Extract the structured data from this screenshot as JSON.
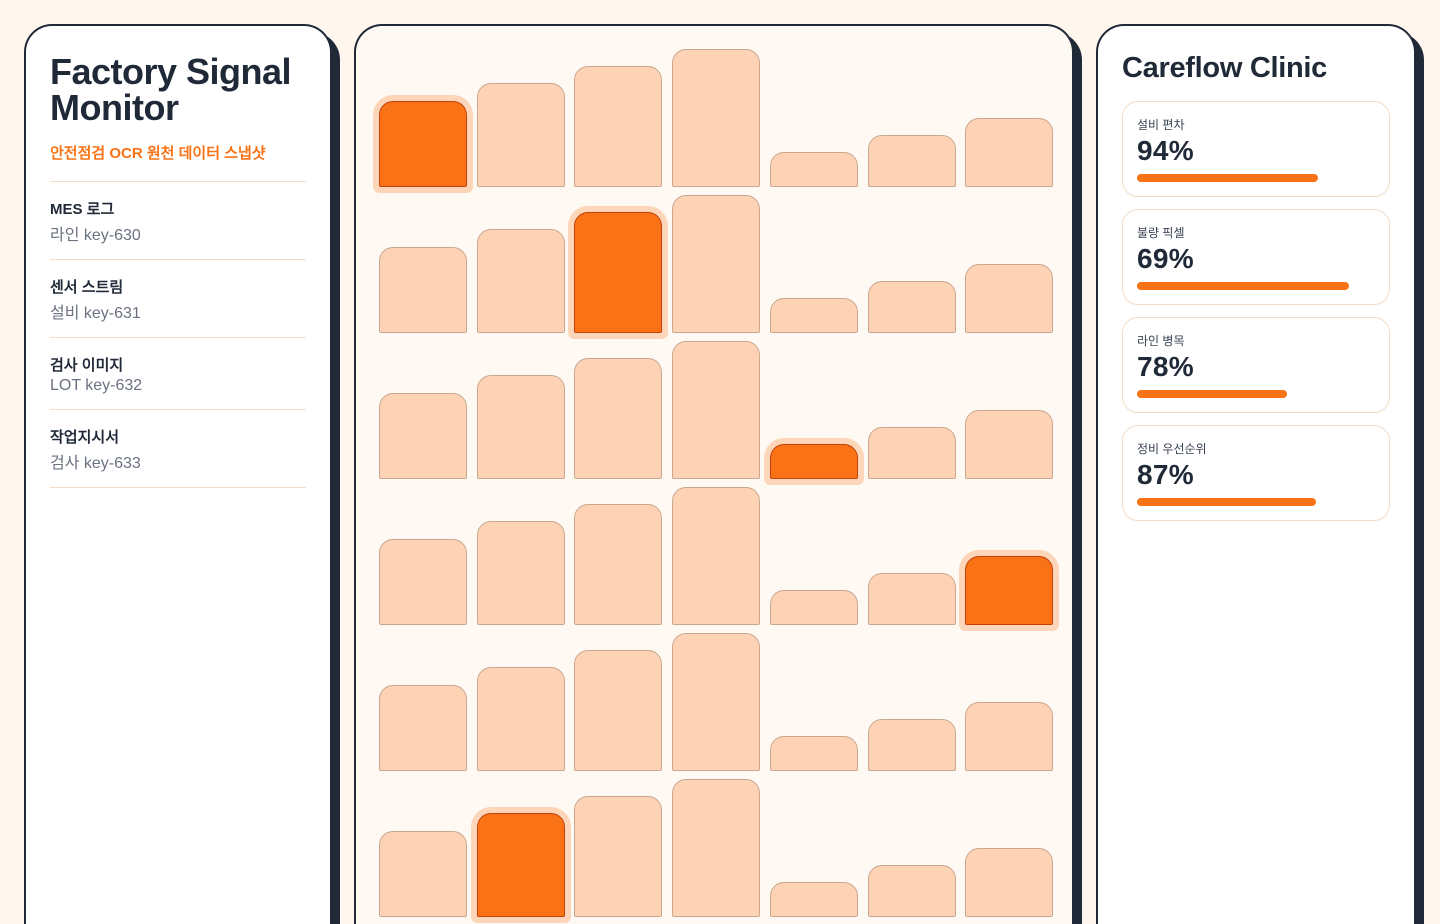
{
  "left": {
    "title": "Factory Signal Monitor",
    "subtitle": "안전점검 OCR 원천 데이터 스냅샷",
    "sources": [
      {
        "name": "MES 로그",
        "meta": "라인 key-630"
      },
      {
        "name": "센서 스트림",
        "meta": "설비 key-631"
      },
      {
        "name": "검사 이미지",
        "meta": "LOT key-632"
      },
      {
        "name": "작업지시서",
        "meta": "검사 key-633"
      }
    ]
  },
  "grid": {
    "columns": 7,
    "rows": 6,
    "relative_heights": [
      0.62,
      0.75,
      0.88,
      1.0,
      0.25,
      0.38,
      0.5
    ],
    "highlighted": [
      [
        0,
        0
      ],
      [
        1,
        2
      ],
      [
        2,
        4
      ],
      [
        3,
        6
      ],
      [
        5,
        1
      ]
    ],
    "colors": {
      "cell": "#fed3b5",
      "highlight": "#f97316"
    }
  },
  "right": {
    "title": "Careflow Clinic",
    "metrics": [
      {
        "label": "설비 편차",
        "value": "94%",
        "fill": 0.76
      },
      {
        "label": "불량 픽셀",
        "value": "69%",
        "fill": 0.89
      },
      {
        "label": "라인 병목",
        "value": "78%",
        "fill": 0.63
      },
      {
        "label": "정비 우선순위",
        "value": "87%",
        "fill": 0.75
      }
    ]
  },
  "colors": {
    "accent": "#f97316",
    "ink": "#1f2937",
    "background": "#fff7ee"
  }
}
